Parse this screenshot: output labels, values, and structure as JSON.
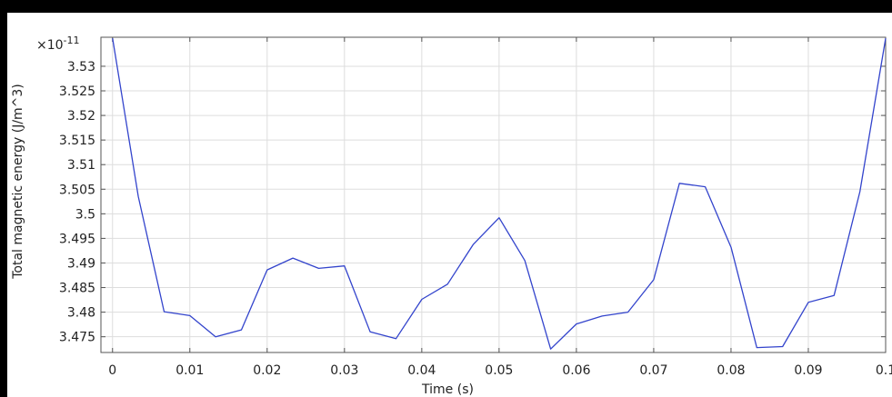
{
  "chart_data": {
    "type": "line",
    "title": "",
    "xlabel": "Time (s)",
    "ylabel": "Total magnetic energy (J/m^3)",
    "y_multiplier_base": "×10",
    "y_multiplier_exp": "-11",
    "xlim": [
      -0.0015,
      0.1
    ],
    "ylim": [
      3.4718,
      3.5359
    ],
    "grid": true,
    "x_ticks": [
      0,
      0.01,
      0.02,
      0.03,
      0.04,
      0.05,
      0.06,
      0.07,
      0.08,
      0.09,
      0.1
    ],
    "x_tick_labels": [
      "0",
      "0.01",
      "0.02",
      "0.03",
      "0.04",
      "0.05",
      "0.06",
      "0.07",
      "0.08",
      "0.09",
      "0.1"
    ],
    "y_ticks": [
      3.475,
      3.48,
      3.485,
      3.49,
      3.495,
      3.5,
      3.505,
      3.51,
      3.515,
      3.52,
      3.525,
      3.53
    ],
    "y_tick_labels": [
      "3.475",
      "3.48",
      "3.485",
      "3.49",
      "3.495",
      "3.5",
      "3.505",
      "3.51",
      "3.515",
      "3.52",
      "3.525",
      "3.53"
    ],
    "series": [
      {
        "color": "#3344cc",
        "x": [
          0,
          0.00333,
          0.00667,
          0.01,
          0.01333,
          0.01667,
          0.02,
          0.02333,
          0.02667,
          0.03,
          0.03333,
          0.03667,
          0.04,
          0.04333,
          0.04667,
          0.05,
          0.05333,
          0.05667,
          0.06,
          0.06333,
          0.06667,
          0.07,
          0.07333,
          0.07667,
          0.08,
          0.08333,
          0.08667,
          0.09,
          0.09333,
          0.09667,
          0.1
        ],
        "y": [
          3.5357,
          3.5035,
          3.4801,
          3.4793,
          3.475,
          3.4764,
          3.4886,
          3.491,
          3.4889,
          3.4894,
          3.476,
          3.4746,
          3.4826,
          3.4857,
          3.4938,
          3.4992,
          3.4905,
          3.4725,
          3.4776,
          3.4792,
          3.48,
          3.4866,
          3.5062,
          3.5055,
          3.4932,
          3.4728,
          3.473,
          3.482,
          3.4834,
          3.5045,
          3.5357
        ]
      }
    ]
  }
}
